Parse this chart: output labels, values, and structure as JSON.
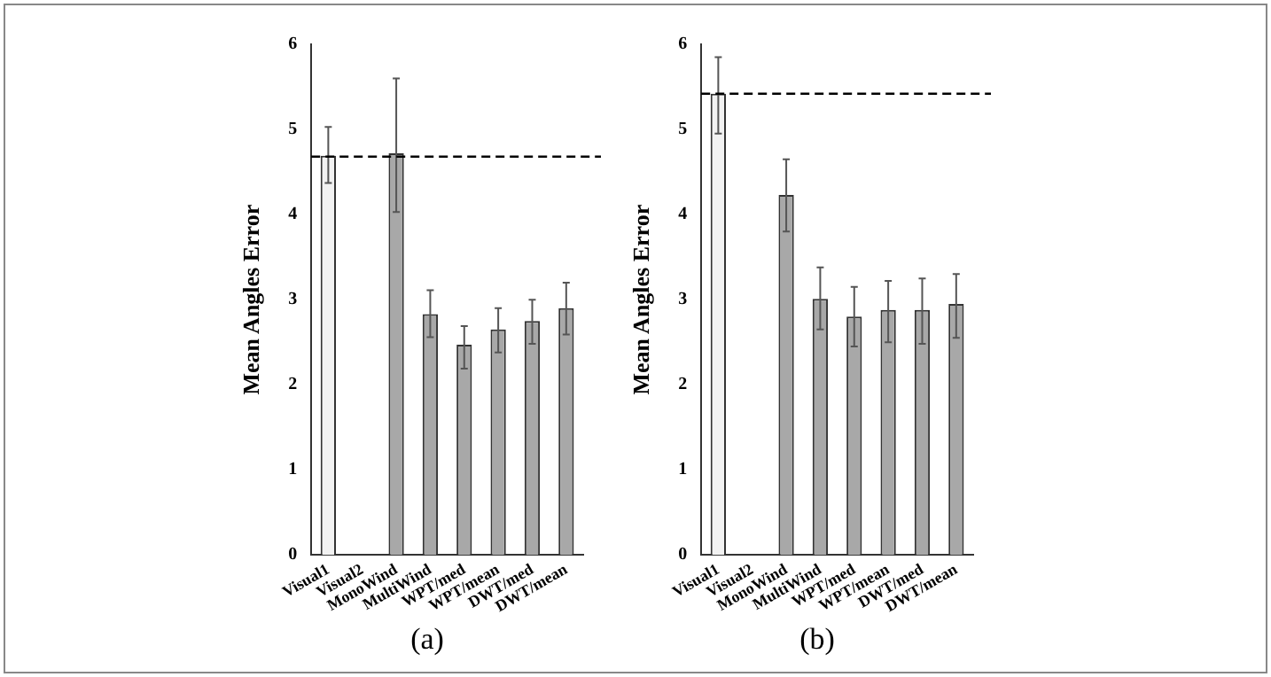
{
  "chart_data": [
    {
      "type": "bar",
      "ylabel": "Mean Angles Error",
      "categories": [
        "Visual1",
        "Visual2",
        "MonoWind",
        "MultiWind",
        "WPT/med",
        "WPT/mean",
        "DWT/med",
        "DWT/mean"
      ],
      "values": [
        4.69,
        0,
        4.72,
        2.83,
        2.47,
        2.65,
        2.75,
        2.9
      ],
      "colors": [
        "#f2f2f2",
        "#a8a8a8",
        "#a8a8a8",
        "#a8a8a8",
        "#a8a8a8",
        "#a8a8a8",
        "#a8a8a8",
        "#a8a8a8"
      ],
      "errors": [
        [
          4.37,
          5.03
        ],
        null,
        [
          4.03,
          5.6
        ],
        [
          2.56,
          3.11
        ],
        [
          2.19,
          2.69
        ],
        [
          2.38,
          2.9
        ],
        [
          2.48,
          3.0
        ],
        [
          2.59,
          3.2
        ]
      ],
      "ylim": [
        0,
        6
      ],
      "yticks": [
        0,
        1,
        2,
        3,
        4,
        5,
        6
      ],
      "grid": false,
      "ref_lines": [
        {
          "axis": "y",
          "value": 4.68,
          "color": "#000000",
          "line_style": "dashed"
        }
      ],
      "annotations": [
        "(a)"
      ]
    },
    {
      "type": "bar",
      "ylabel": "Mean Angles Error",
      "categories": [
        "Visual1",
        "Visual2",
        "MonoWind",
        "MultiWind",
        "WPT/med",
        "WPT/mean",
        "DWT/med",
        "DWT/mean"
      ],
      "values": [
        5.42,
        0,
        4.23,
        3.01,
        2.8,
        2.88,
        2.88,
        2.95
      ],
      "colors": [
        "#f2f2f2",
        "#a8a8a8",
        "#a8a8a8",
        "#a8a8a8",
        "#a8a8a8",
        "#a8a8a8",
        "#a8a8a8",
        "#a8a8a8"
      ],
      "errors": [
        [
          4.95,
          5.85
        ],
        null,
        [
          3.8,
          4.65
        ],
        [
          2.65,
          3.38
        ],
        [
          2.45,
          3.15
        ],
        [
          2.5,
          3.22
        ],
        [
          2.48,
          3.25
        ],
        [
          2.55,
          3.3
        ]
      ],
      "ylim": [
        0,
        6
      ],
      "yticks": [
        0,
        1,
        2,
        3,
        4,
        5,
        6
      ],
      "grid": false,
      "ref_lines": [
        {
          "axis": "y",
          "value": 5.42,
          "color": "#000000",
          "line_style": "dashed"
        }
      ],
      "annotations": [
        "(b)"
      ]
    }
  ]
}
